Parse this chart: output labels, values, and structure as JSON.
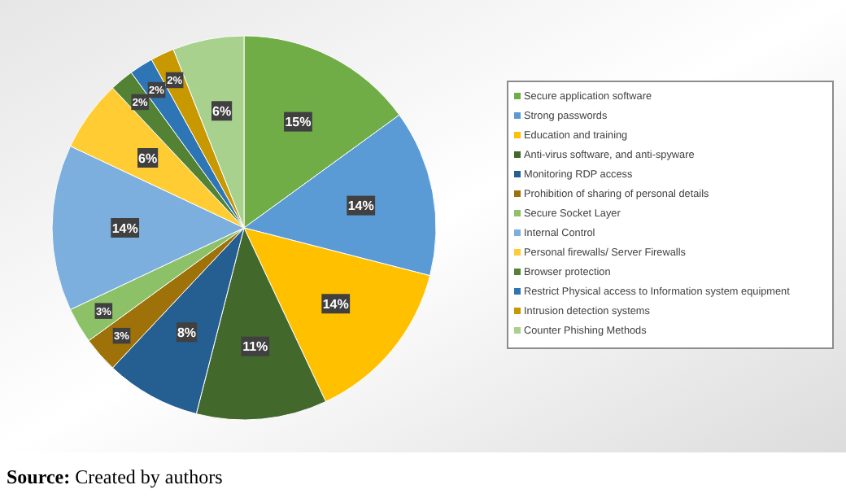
{
  "chart_data": {
    "type": "pie",
    "categories": [
      "Secure application software",
      "Strong passwords",
      "Education  and training",
      "Anti-virus software, and anti-spyware",
      "Monitoring RDP access",
      "Prohibition of sharing of personal details",
      "Secure Socket Layer",
      "Internal Control",
      "Personal firewalls/ Server Firewalls",
      "Browser protection",
      "Restrict Physical access to Information system equipment",
      "Intrusion detection systems",
      "Counter Phishing Methods"
    ],
    "values": [
      15,
      14,
      14,
      11,
      8,
      3,
      3,
      14,
      6,
      2,
      2,
      2,
      6
    ],
    "value_labels": [
      "15%",
      "14%",
      "14%",
      "11%",
      "8%",
      "3%",
      "3%",
      "14%",
      "6%",
      "2%",
      "2%",
      "2%",
      "6%"
    ],
    "colors": [
      "#70ad47",
      "#5b9bd5",
      "#ffc000",
      "#43682b",
      "#255e91",
      "#9e7208",
      "#8cc168",
      "#7cafdd",
      "#ffcd33",
      "#548235",
      "#2e75b6",
      "#c89800",
      "#a9d18e"
    ],
    "legend": "right",
    "annotations": [
      "Source: Created by authors"
    ]
  }
}
